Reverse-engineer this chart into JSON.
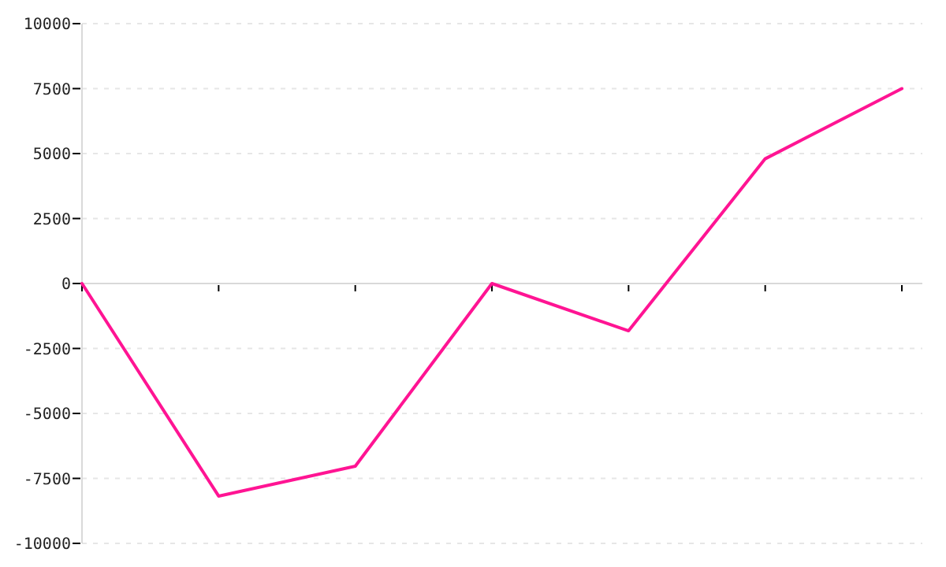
{
  "chart_data": {
    "type": "line",
    "categories": [
      null,
      null,
      null,
      null,
      null,
      null,
      null
    ],
    "series": [
      {
        "color": "#ff1493",
        "values": [
          0,
          -8180,
          -7030,
          0,
          -1820,
          4800,
          7500
        ]
      }
    ],
    "ylim": [
      -10000,
      10000
    ],
    "yticks": [
      -10000,
      -7500,
      -5000,
      -2500,
      0,
      2500,
      5000,
      7500,
      10000
    ],
    "tick_labels": "y",
    "grid": "y",
    "marker": "none",
    "line_style": "solid"
  }
}
